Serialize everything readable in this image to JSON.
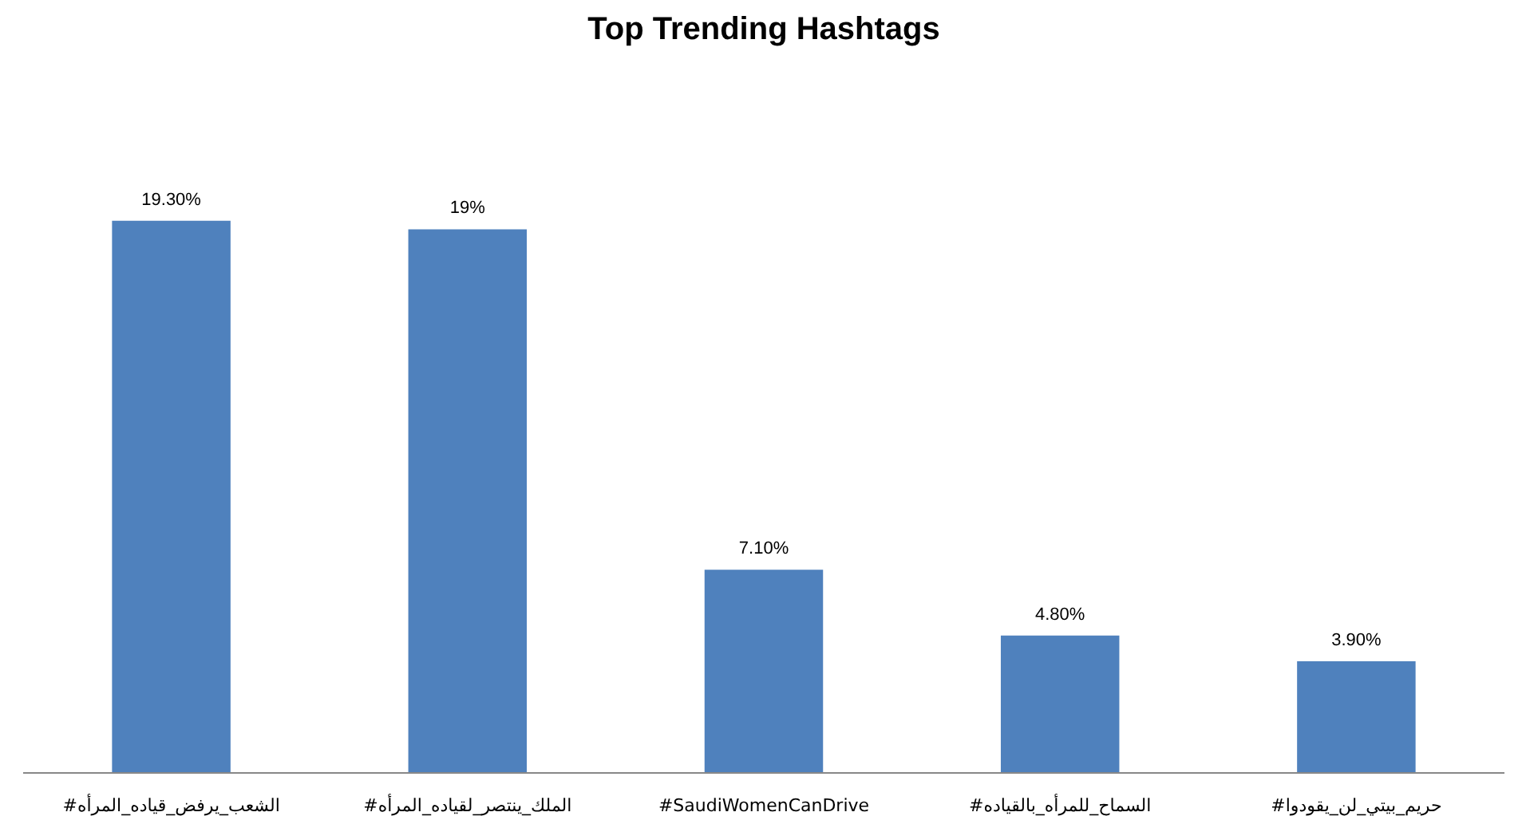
{
  "chart_data": {
    "type": "bar",
    "title": "Top Trending Hashtags",
    "categories": [
      "#الشعب_يرفض_قياده_المرأه",
      "#الملك_ينتصر_لقياده_المرأه",
      "#SaudiWomenCanDrive",
      "#السماح_للمرأه_بالقياده",
      "#حريم_بيتي_لن_يقودوا"
    ],
    "values": [
      19.3,
      19,
      7.1,
      4.8,
      3.9
    ],
    "value_labels": [
      "19.30%",
      "19%",
      "7.10%",
      "4.80%",
      "3.90%"
    ],
    "color": "#4f81bd",
    "tick_labels": "x",
    "grid": false
  }
}
